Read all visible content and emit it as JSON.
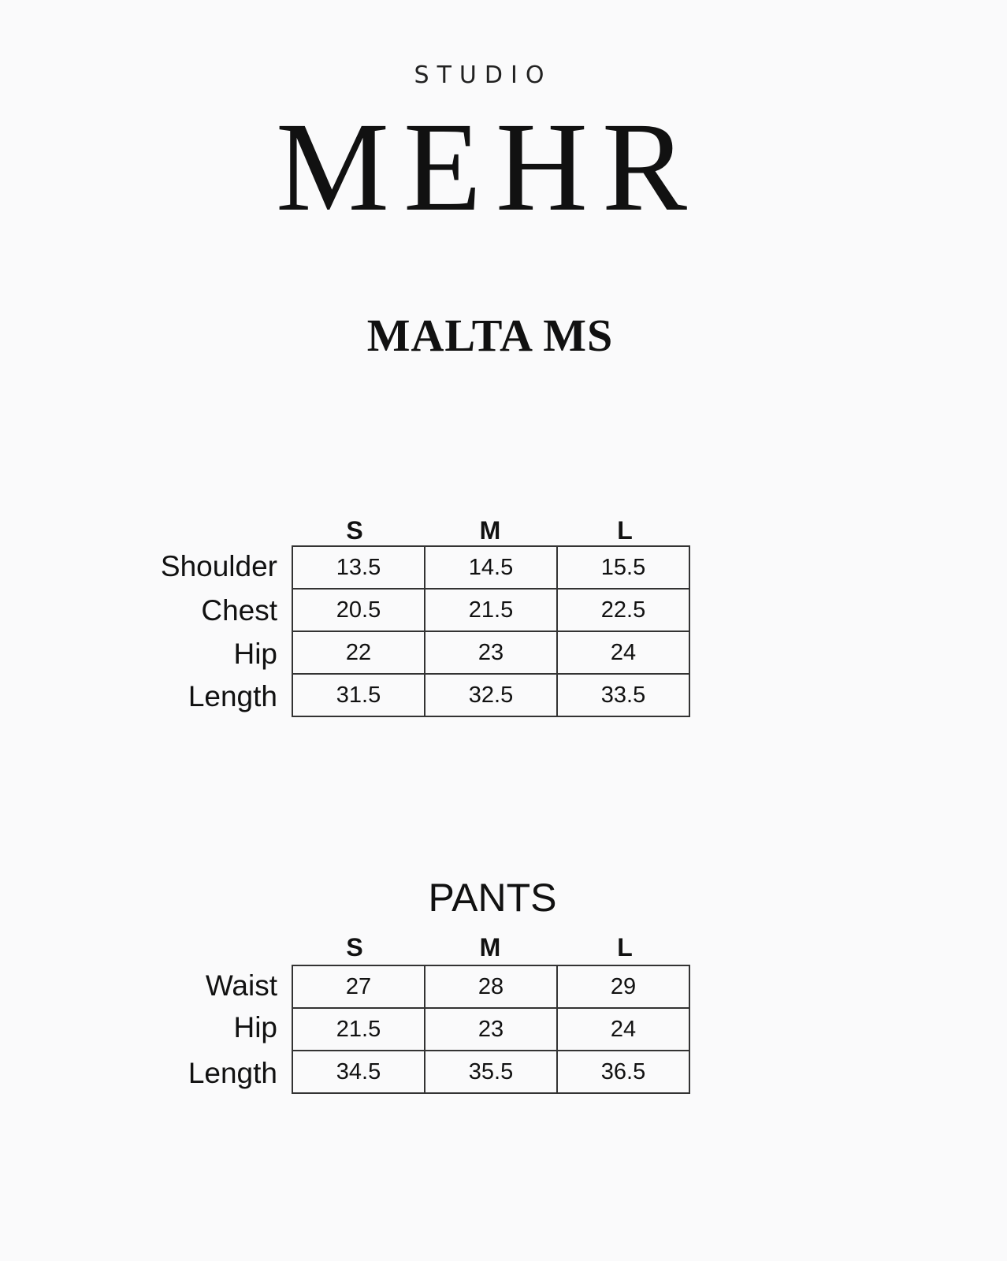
{
  "brand": {
    "studio": "STUDIO",
    "name": "MEHR"
  },
  "product_title": "MALTA MS",
  "top_chart": {
    "sizes": [
      "S",
      "M",
      "L"
    ],
    "rows": [
      {
        "label": "Shoulder",
        "values": [
          "13.5",
          "14.5",
          "15.5"
        ]
      },
      {
        "label": "Chest",
        "values": [
          "20.5",
          "21.5",
          "22.5"
        ]
      },
      {
        "label": "Hip",
        "values": [
          "22",
          "23",
          "24"
        ]
      },
      {
        "label": "Length",
        "values": [
          "31.5",
          "32.5",
          "33.5"
        ]
      }
    ]
  },
  "pants_chart": {
    "title": "PANTS",
    "sizes": [
      "S",
      "M",
      "L"
    ],
    "rows": [
      {
        "label": "Waist",
        "values": [
          "27",
          "28",
          "29"
        ]
      },
      {
        "label": "Hip",
        "values": [
          "21.5",
          "23",
          "24"
        ]
      },
      {
        "label": "Length",
        "values": [
          "34.5",
          "35.5",
          "36.5"
        ]
      }
    ]
  }
}
